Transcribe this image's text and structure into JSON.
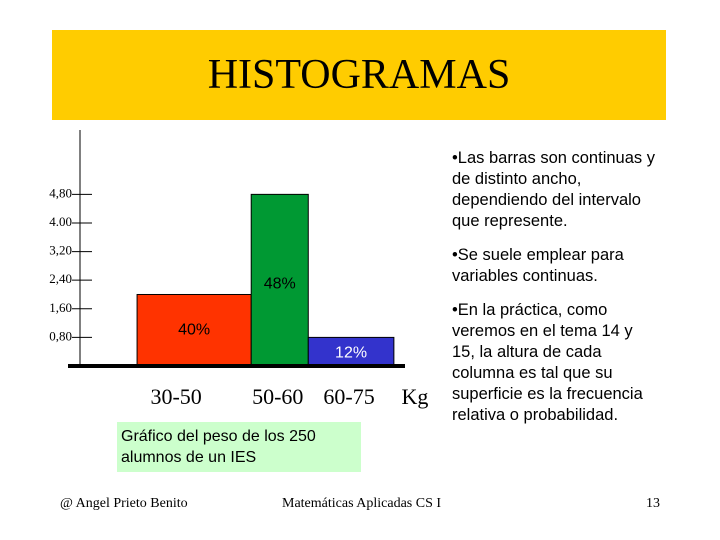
{
  "header": {
    "title": "HISTOGRAMAS"
  },
  "chart_data": {
    "type": "histogram",
    "bins": [
      30,
      50,
      60,
      75
    ],
    "values": [
      2.0,
      4.8,
      0.8
    ],
    "colors": [
      "#ff3300",
      "#009933",
      "#3333cc"
    ],
    "bar_labels": [
      "40%",
      "48%",
      "12%"
    ],
    "bin_labels": [
      "30-50",
      "50-60",
      "60-75"
    ],
    "xlabel": "Kg",
    "xlim": [
      20,
      78
    ],
    "ylim": [
      0,
      6.6
    ],
    "yticks": [
      {
        "value": 0.8,
        "label": "0,80"
      },
      {
        "value": 1.6,
        "label": "1,60"
      },
      {
        "value": 2.4,
        "label": "2,40"
      },
      {
        "value": 3.2,
        "label": "3,20"
      },
      {
        "value": 4.0,
        "label": "4.00"
      },
      {
        "value": 4.8,
        "label": "4,80"
      }
    ]
  },
  "caption": "Gráfico del peso de los 250 alumnos de un IES",
  "bullets": [
    "•Las barras son continuas y de distinto ancho, dependiendo del intervalo que represente.",
    "•Se suele emplear para variables continuas.",
    "•En la práctica, como veremos en el tema 14 y 15, la altura de cada columna es tal que su superficie es la frecuencia relativa o probabilidad."
  ],
  "footer": {
    "author": "@ Angel Prieto Benito",
    "course": "Matemáticas Aplicadas CS I",
    "page": "13"
  }
}
